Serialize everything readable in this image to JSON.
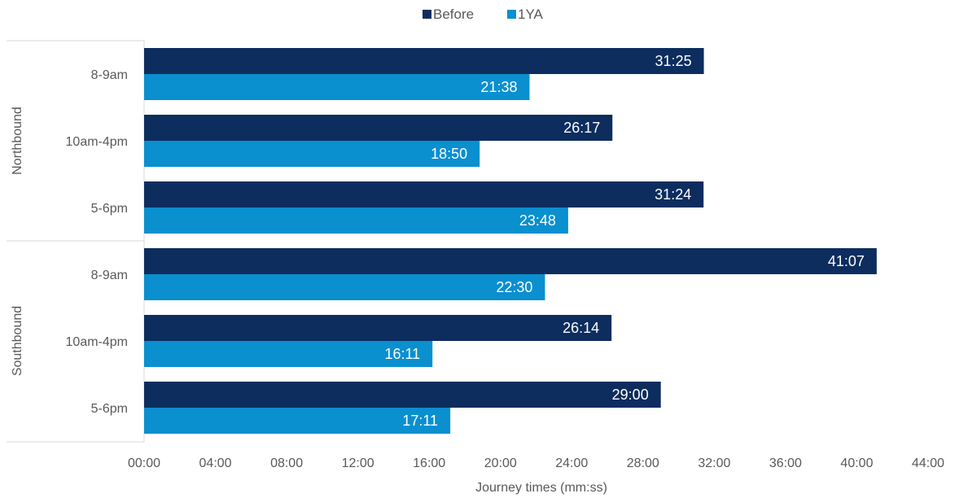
{
  "colors": {
    "before": "#0c2d5e",
    "after": "#0a8fcf",
    "axis_line": "#d9d9d9",
    "text": "#595959"
  },
  "chart_data": {
    "type": "bar",
    "orientation": "horizontal",
    "title": "",
    "xlabel": "Journey times (mm:ss)",
    "ylabel": "",
    "xlim": [
      0,
      2640
    ],
    "x_unit": "seconds",
    "x_ticks": [
      "00:00",
      "04:00",
      "08:00",
      "12:00",
      "16:00",
      "20:00",
      "24:00",
      "28:00",
      "32:00",
      "36:00",
      "40:00",
      "44:00"
    ],
    "legend_position": "top-center",
    "grid": false,
    "groups": [
      {
        "name": "Northbound",
        "categories": [
          "8-9am",
          "10am-4pm",
          "5-6pm"
        ]
      },
      {
        "name": "Southbound",
        "categories": [
          "8-9am",
          "10am-4pm",
          "5-6pm"
        ]
      }
    ],
    "series": [
      {
        "name": "Before",
        "values": [
          1885,
          1577,
          1884,
          2467,
          1574,
          1740
        ],
        "labels": [
          "31:25",
          "26:17",
          "31:24",
          "41:07",
          "26:14",
          "29:00"
        ]
      },
      {
        "name": "1YA",
        "values": [
          1298,
          1130,
          1428,
          1350,
          971,
          1031
        ],
        "labels": [
          "21:38",
          "18:50",
          "23:48",
          "22:30",
          "16:11",
          "17:11"
        ]
      }
    ]
  }
}
